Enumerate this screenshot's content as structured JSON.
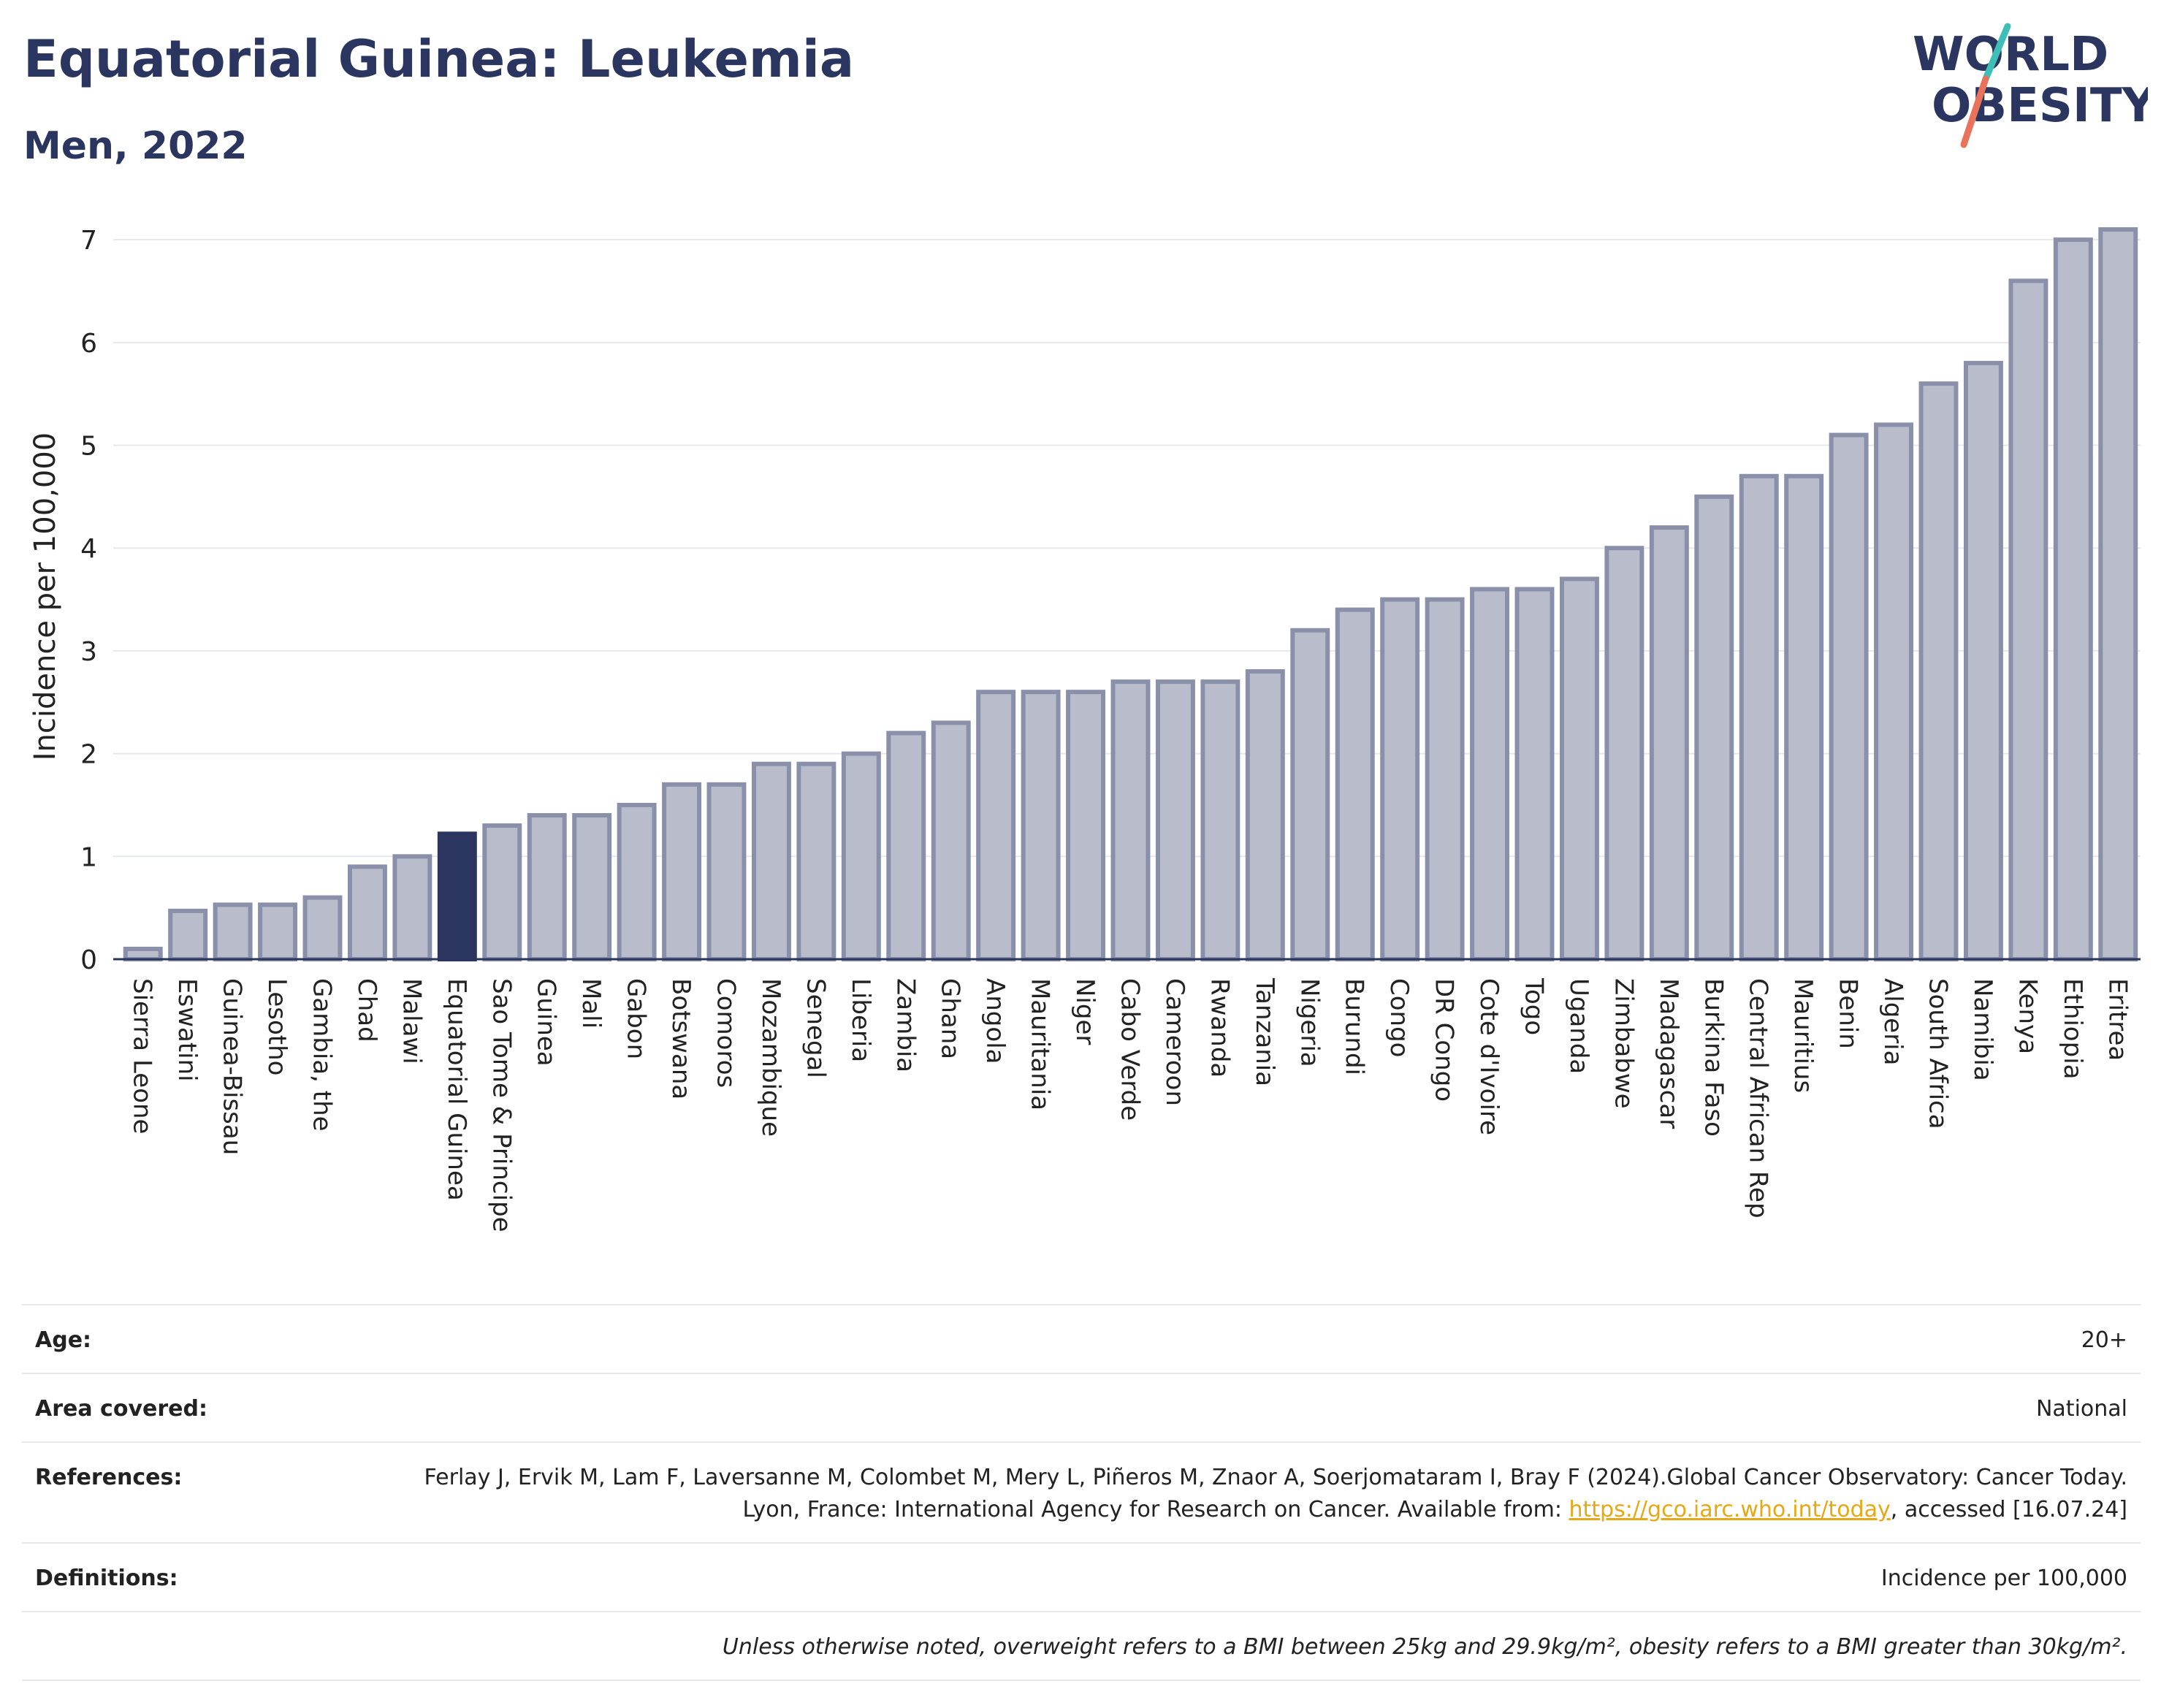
{
  "header": {
    "title": "Equatorial Guinea: Leukemia",
    "subtitle": "Men, 2022"
  },
  "logo": {
    "line1": "WORLD",
    "line2": "OBESITY"
  },
  "colors": {
    "bar": "#b9bdcb",
    "bar_border": "#8a90aa",
    "highlight": "#2b3660",
    "title": "#2b3660",
    "link": "#e6a817",
    "logo_teal": "#3dbfb8",
    "logo_coral": "#e8735a"
  },
  "chart_data": {
    "type": "bar",
    "ylabel": "Incidence per 100,000",
    "xlabel": "",
    "ylim": [
      0,
      7.2
    ],
    "yticks": [
      0,
      1,
      2,
      3,
      4,
      5,
      6,
      7
    ],
    "grid": true,
    "highlight": "Equatorial Guinea",
    "categories": [
      "Sierra Leone",
      "Eswatini",
      "Guinea-Bissau",
      "Lesotho",
      "Gambia, the",
      "Chad",
      "Malawi",
      "Equatorial Guinea",
      "Sao Tome & Principe",
      "Guinea",
      "Mali",
      "Gabon",
      "Botswana",
      "Comoros",
      "Mozambique",
      "Senegal",
      "Liberia",
      "Zambia",
      "Ghana",
      "Angola",
      "Mauritania",
      "Niger",
      "Cabo Verde",
      "Cameroon",
      "Rwanda",
      "Tanzania",
      "Nigeria",
      "Burundi",
      "Congo",
      "DR Congo",
      "Cote d'Ivoire",
      "Togo",
      "Uganda",
      "Zimbabwe",
      "Madagascar",
      "Burkina Faso",
      "Central African Rep",
      "Mauritius",
      "Benin",
      "Algeria",
      "South Africa",
      "Namibia",
      "Kenya",
      "Ethiopia",
      "Eritrea"
    ],
    "values": [
      0.1,
      0.47,
      0.53,
      0.53,
      0.6,
      0.9,
      1.0,
      1.22,
      1.3,
      1.4,
      1.4,
      1.5,
      1.7,
      1.7,
      1.9,
      1.9,
      2.0,
      2.2,
      2.3,
      2.6,
      2.6,
      2.6,
      2.7,
      2.7,
      2.7,
      2.8,
      3.2,
      3.4,
      3.5,
      3.5,
      3.6,
      3.6,
      3.7,
      4.0,
      4.2,
      4.5,
      4.7,
      4.7,
      5.1,
      5.2,
      5.6,
      5.8,
      6.6,
      7.0,
      7.1
    ]
  },
  "info": {
    "age": {
      "label": "Age:",
      "value": "20+"
    },
    "area": {
      "label": "Area covered:",
      "value": "National"
    },
    "references": {
      "label": "References:",
      "text": "Ferlay J, Ervik M, Lam F, Laversanne M, Colombet M, Mery L, Piñeros M, Znaor A, Soerjomataram I, Bray F (2024).Global Cancer Observatory: Cancer Today. Lyon, France: International Agency for Research on Cancer. Available from: ",
      "link": "https://gco.iarc.who.int/today",
      "suffix": ", accessed [16.07.24]"
    },
    "definitions": {
      "label": "Definitions:",
      "value": "Incidence per 100,000"
    },
    "note": "Unless otherwise noted, overweight refers to a BMI between 25kg and 29.9kg/m², obesity refers to a BMI greater than 30kg/m²."
  }
}
